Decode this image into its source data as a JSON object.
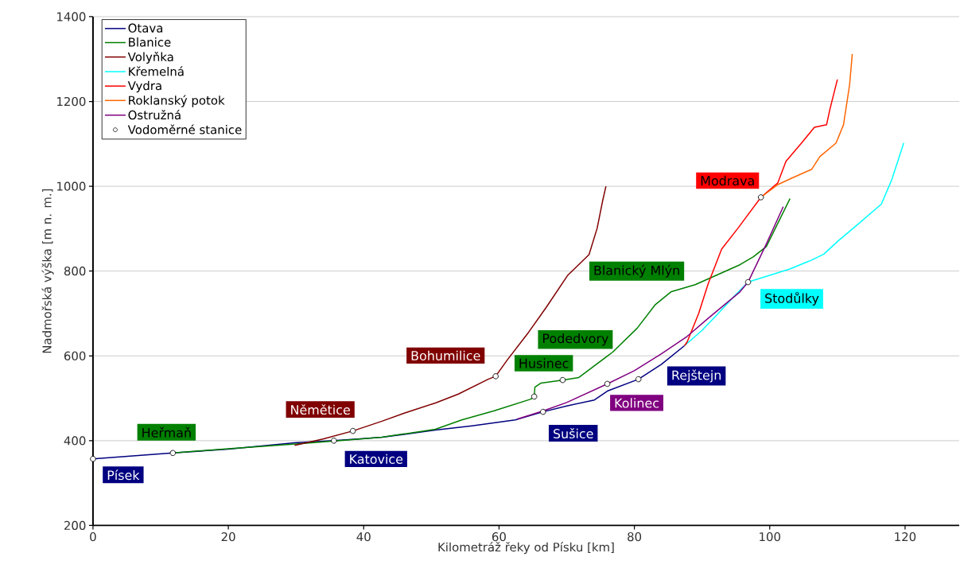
{
  "chart_data": {
    "type": "line",
    "xlabel": "Kilometráž řeky od Písku [km]",
    "ylabel": "Nadmořská výška [m n. m.]",
    "xlim": [
      0,
      128
    ],
    "ylim": [
      200,
      1400
    ],
    "xticks": [
      0,
      20,
      40,
      60,
      80,
      100,
      120
    ],
    "yticks": [
      200,
      400,
      600,
      800,
      1000,
      1200,
      1400
    ],
    "grid": "y",
    "legend": "top left",
    "series": [
      {
        "name": "Otava",
        "color": "#000080",
        "x": [
          0,
          11.8,
          20,
          29.8,
          35.6,
          40,
          42.7,
          47.4,
          50.6,
          56,
          62.4,
          66.5,
          70,
          74.1,
          76,
          80.6,
          84,
          87.4
        ],
        "values": [
          357,
          371,
          380,
          395,
          400,
          405,
          408,
          418,
          425,
          435,
          449,
          468,
          482,
          496,
          517,
          545,
          580,
          624
        ]
      },
      {
        "name": "Blanice",
        "color": "#008000",
        "x": [
          11.8,
          20,
          30,
          38,
          42.7,
          50.6,
          54.5,
          59.2,
          64.7,
          65.2,
          65.3,
          66.2,
          69.4,
          71.8,
          76.8,
          80.4,
          83.1,
          85.4,
          89,
          95.6,
          97.6,
          99.5,
          103
        ],
        "values": [
          371,
          381,
          392,
          402,
          408,
          427,
          449,
          470,
          498,
          504,
          526,
          536,
          543,
          549,
          609,
          665,
          721,
          751,
          768,
          815,
          834,
          858,
          971
        ]
      },
      {
        "name": "Volyňka",
        "color": "#800000",
        "x": [
          29.8,
          34,
          38.4,
          42.7,
          46,
          50.6,
          54,
          58.4,
          59.5,
          61.2,
          64.2,
          67,
          70.1,
          73.3,
          74.5,
          75.3,
          75.8
        ],
        "values": [
          389,
          404,
          423,
          446,
          465,
          489,
          510,
          545,
          552,
          590,
          652,
          715,
          789,
          839,
          901,
          965,
          1000
        ]
      },
      {
        "name": "Křemelná",
        "color": "#00ffff",
        "x": [
          87.4,
          90,
          92.5,
          94.7,
          96.8,
          100,
          103,
          106.2,
          108,
          110.1,
          113,
          116.5,
          118,
          119.8
        ],
        "values": [
          624,
          660,
          702,
          740,
          774,
          790,
          805,
          826,
          840,
          871,
          910,
          958,
          1014,
          1102
        ]
      },
      {
        "name": "Vydra",
        "color": "#ff0000",
        "x": [
          87.4,
          87.8,
          89.5,
          90.9,
          92.9,
          95.3,
          98.7,
          101.2,
          102.4,
          104.7,
          106.6,
          108.4,
          108.9,
          110
        ],
        "values": [
          624,
          633,
          700,
          770,
          852,
          901,
          974,
          1008,
          1059,
          1102,
          1139,
          1145,
          1182,
          1252
        ]
      },
      {
        "name": "Roklanský potok",
        "color": "#ff6600",
        "x": [
          98.7,
          101.2,
          103.1,
          106.2,
          107.4,
          109.8,
          110.9,
          111.8,
          112.2
        ],
        "values": [
          974,
          1004,
          1018,
          1040,
          1070,
          1102,
          1145,
          1239,
          1312
        ]
      },
      {
        "name": "Ostružná",
        "color": "#800080",
        "x": [
          62.7,
          66.5,
          70,
          76,
          80,
          84,
          87.8,
          91,
          95.6,
          96.8,
          99.5,
          102
        ],
        "values": [
          451,
          470,
          490,
          534,
          565,
          605,
          646,
          690,
          751,
          774,
          864,
          952
        ]
      },
      {
        "name": "Vodoměrné stanice",
        "type": "scatter",
        "marker": "circle",
        "color": "#ffffff",
        "x": [
          0,
          11.8,
          35.6,
          38.4,
          59.5,
          65.2,
          66.5,
          69.4,
          76,
          80.6,
          96.8,
          98.7
        ],
        "values": [
          357,
          371,
          400,
          423,
          552,
          504,
          468,
          543,
          534,
          545,
          774,
          974
        ]
      }
    ],
    "annotations": [
      {
        "text": "Písek",
        "x": 0,
        "y": 357
      },
      {
        "text": "Heřmaň",
        "x": 11.8,
        "y": 371
      },
      {
        "text": "Katovice",
        "x": 35.6,
        "y": 400
      },
      {
        "text": "Němětice",
        "x": 38.4,
        "y": 423
      },
      {
        "text": "Bohumilice",
        "x": 59.5,
        "y": 552
      },
      {
        "text": "Husinec",
        "x": 65.2,
        "y": 504
      },
      {
        "text": "Podedvory",
        "x": 69.4,
        "y": 543
      },
      {
        "text": "Sušice",
        "x": 66.5,
        "y": 468
      },
      {
        "text": "Kolinec",
        "x": 76,
        "y": 534
      },
      {
        "text": "Rejštejn",
        "x": 80.6,
        "y": 545
      },
      {
        "text": "Blanický Mlýn",
        "x": 85.4,
        "y": 751
      },
      {
        "text": "Stodůlky",
        "x": 96.8,
        "y": 774
      },
      {
        "text": "Modrava",
        "x": 98.7,
        "y": 974
      }
    ]
  }
}
